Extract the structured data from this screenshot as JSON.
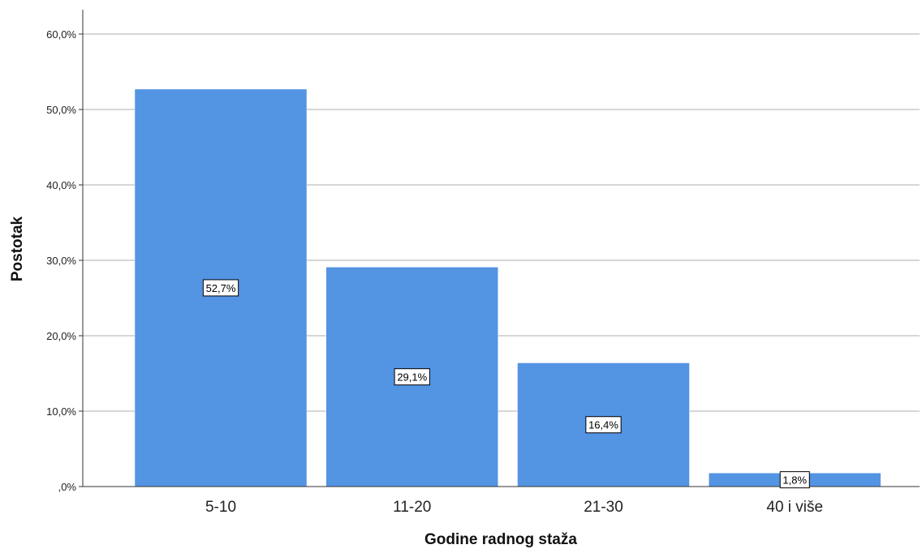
{
  "chart_data": {
    "type": "bar",
    "categories": [
      "5-10",
      "11-20",
      "21-30",
      "40 i više"
    ],
    "values": [
      52.7,
      29.1,
      16.4,
      1.8
    ],
    "data_labels": [
      "52,7%",
      "29,1%",
      "16,4%",
      "1,8%"
    ],
    "title": "",
    "xlabel": "Godine radnog staža",
    "ylabel": "Postotak",
    "ylim": [
      0,
      62
    ],
    "yticks": [
      0,
      10,
      20,
      30,
      40,
      50,
      60
    ],
    "ytick_labels": [
      ",0%",
      "10,0%",
      "20,0%",
      "30,0%",
      "40,0%",
      "50,0%",
      "60,0%"
    ],
    "grid": true,
    "bar_color": "#5394e3",
    "grid_color": "#c8c8c8"
  }
}
